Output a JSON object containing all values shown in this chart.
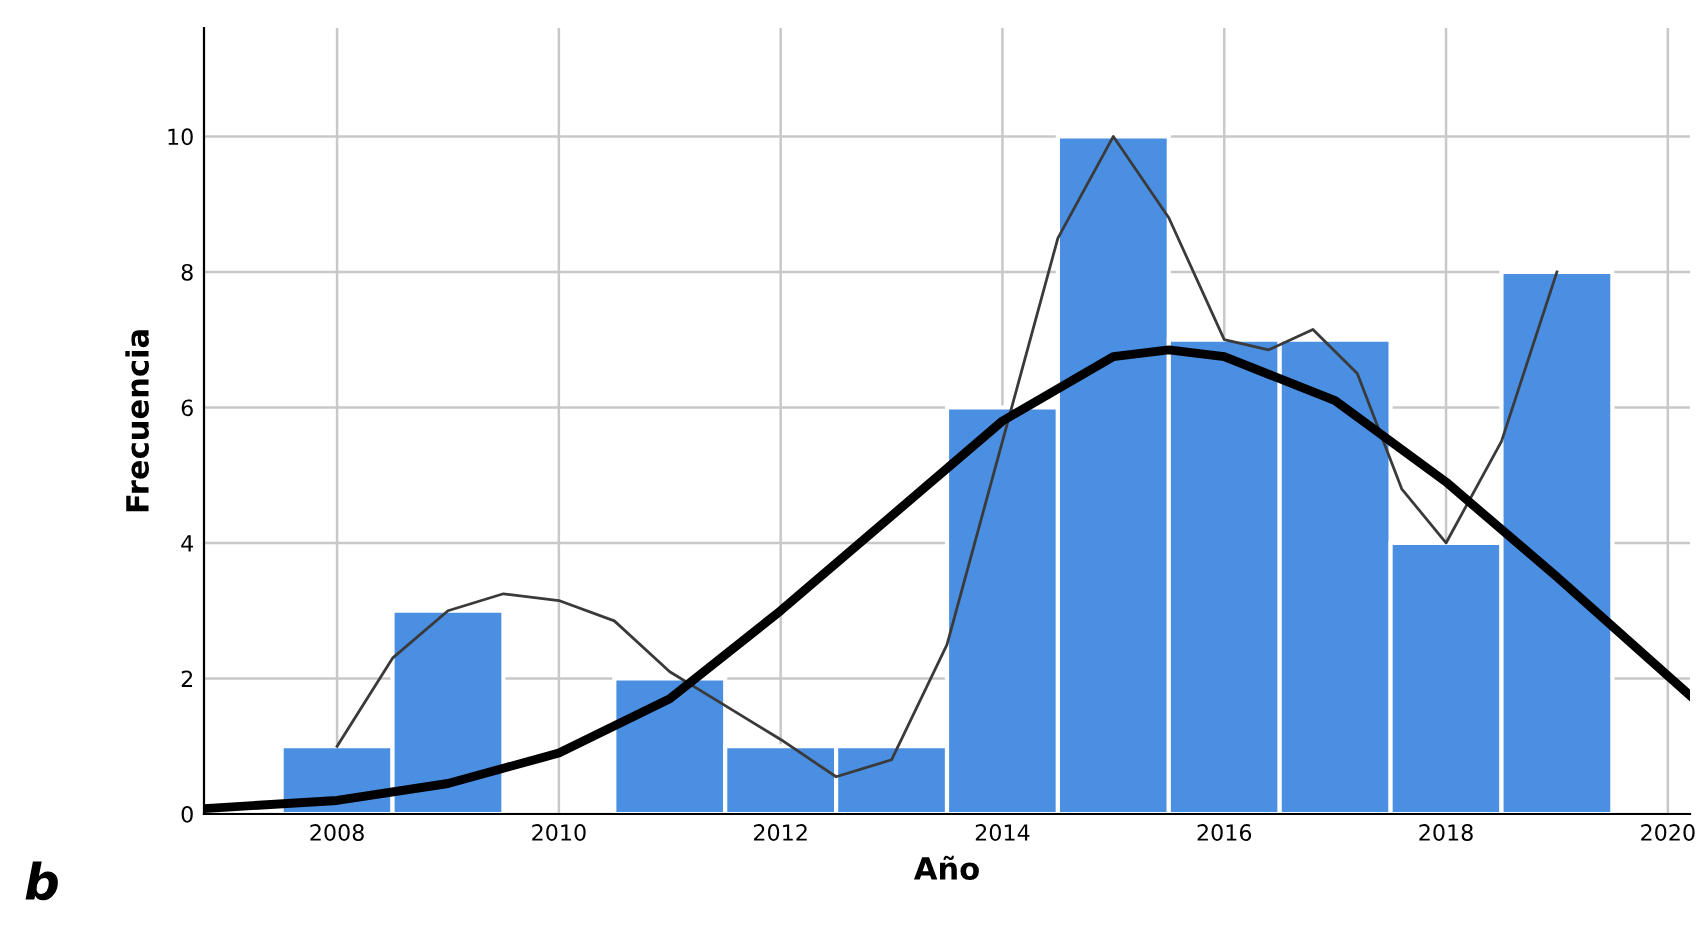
{
  "chart_data": {
    "type": "histogram",
    "xlabel": "Año",
    "ylabel": "Frecuencia",
    "bins": [
      2007.5,
      2008.5,
      2009.5,
      2010.5,
      2011.5,
      2012.5,
      2013.5,
      2014.5,
      2015.5,
      2016.5,
      2017.5,
      2018.5,
      2019.5
    ],
    "values": [
      1,
      3,
      0,
      2,
      1,
      1,
      6,
      10,
      7,
      7,
      4,
      8
    ],
    "color": "#4a8fe2",
    "series": [
      {
        "type": "line",
        "color": "#000000",
        "x": [
          2006.8,
          2008,
          2009,
          2010,
          2011,
          2012,
          2013,
          2014,
          2015,
          2015.5,
          2016,
          2017,
          2018,
          2019,
          2020.2
        ],
        "values": [
          0.08,
          0.2,
          0.45,
          0.9,
          1.7,
          3.0,
          4.4,
          5.8,
          6.75,
          6.85,
          6.75,
          6.1,
          4.9,
          3.5,
          1.75
        ]
      },
      {
        "type": "line",
        "color": "#3a3a3a",
        "x": [
          2008,
          2008.5,
          2009,
          2009.5,
          2010,
          2010.5,
          2011,
          2011.5,
          2012,
          2012.5,
          2013,
          2013.5,
          2014,
          2014.5,
          2015,
          2015.5,
          2016,
          2016.4,
          2016.8,
          2017.2,
          2017.6,
          2018,
          2018.5,
          2019
        ],
        "values": [
          1.0,
          2.3,
          3.0,
          3.25,
          3.15,
          2.85,
          2.1,
          1.6,
          1.1,
          0.55,
          0.8,
          2.5,
          5.5,
          8.5,
          10.0,
          8.8,
          7.0,
          6.85,
          7.15,
          6.5,
          4.8,
          4.0,
          5.5,
          8.0
        ]
      }
    ],
    "xlim": [
      2006.8,
      2020.2
    ],
    "ylim": [
      0,
      11.6
    ],
    "xticks": [
      2008,
      2010,
      2012,
      2014,
      2016,
      2018,
      2020
    ],
    "yticks": [
      0,
      2,
      4,
      6,
      8,
      10
    ],
    "grid": true,
    "annotations": [
      "b"
    ]
  }
}
